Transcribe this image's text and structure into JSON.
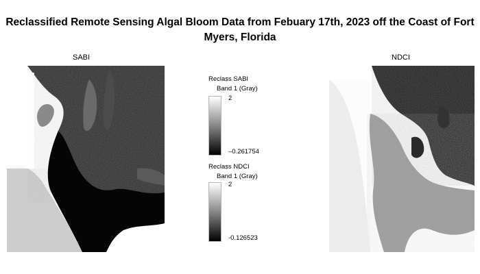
{
  "title": "Reclassified Remote Sensing Algal Bloom Data from Febuary 17th, 2023 off the Coast of Fort Myers, Florida",
  "panels": {
    "left": {
      "label": "SABI"
    },
    "right": {
      "label": "NDCI"
    }
  },
  "legends": [
    {
      "title": "Reclass SABI",
      "band": "Band 1 (Gray)",
      "max": "2",
      "min": "–0.261754"
    },
    {
      "title": "Reclass NDCI",
      "band": "Band 1 (Gray)",
      "max": "2",
      "min": "-0.126523"
    }
  ],
  "colors": {
    "ramp_high": "#ffffff",
    "ramp_low": "#000000",
    "background": "#ffffff"
  }
}
